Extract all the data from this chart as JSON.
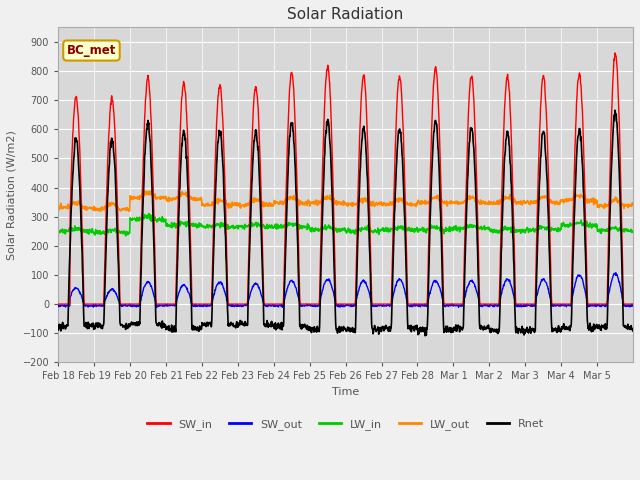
{
  "title": "Solar Radiation",
  "xlabel": "Time",
  "ylabel": "Solar Radiation (W/m2)",
  "ylim": [
    -200,
    950
  ],
  "yticks": [
    -200,
    -100,
    0,
    100,
    200,
    300,
    400,
    500,
    600,
    700,
    800,
    900
  ],
  "fig_bg_color": "#f0f0f0",
  "plot_bg_color": "#d8d8d8",
  "annotation_text": "BC_met",
  "annotation_bg": "#ffffcc",
  "annotation_edge": "#cc9900",
  "annotation_color": "#880000",
  "series_colors": {
    "SW_in": "#ff0000",
    "SW_out": "#0000ff",
    "LW_in": "#00cc00",
    "LW_out": "#ff8800",
    "Rnet": "#000000"
  },
  "series_linewidths": {
    "SW_in": 1.0,
    "SW_out": 1.0,
    "LW_in": 1.2,
    "LW_out": 1.2,
    "Rnet": 1.2
  },
  "num_days": 16,
  "points_per_day": 96,
  "xtick_labels": [
    "Feb 18",
    "Feb 19",
    "Feb 20",
    "Feb 21",
    "Feb 22",
    "Feb 23",
    "Feb 24",
    "Feb 25",
    "Feb 26",
    "Feb 27",
    "Feb 28",
    "Mar 1",
    "Mar 2",
    "Mar 3",
    "Mar 4",
    "Mar 5"
  ],
  "grid_color": "#ffffff",
  "title_fontsize": 11,
  "label_fontsize": 8,
  "tick_fontsize": 7
}
